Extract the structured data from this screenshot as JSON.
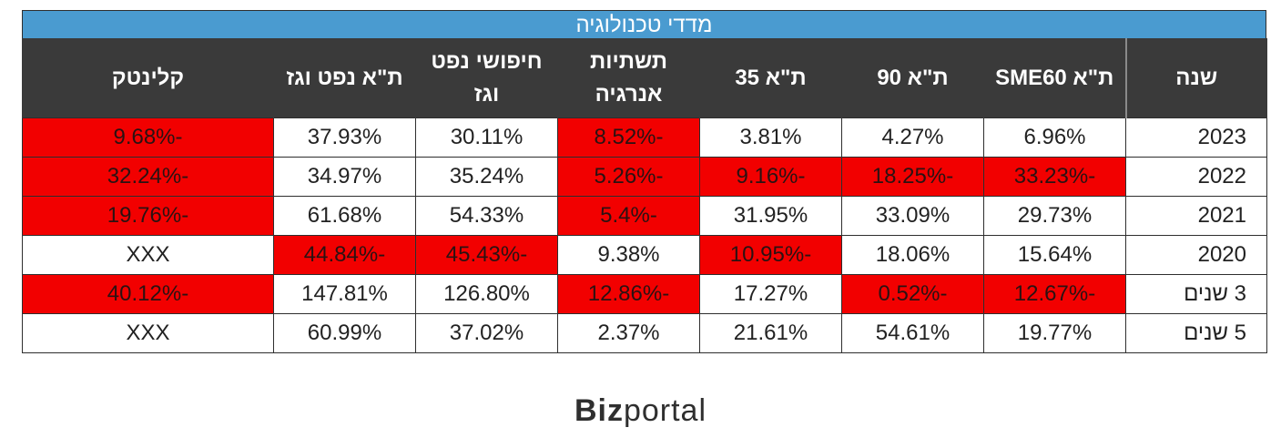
{
  "title": "מדדי טכנולוגיה",
  "headers": [
    "שנה",
    "ת\"א SME60",
    "ת\"א 90",
    "ת\"א 35",
    "תשתיות אנרגיה",
    "חיפושי נפט וגז",
    "ת\"א נפט וגז",
    "קלינטק"
  ],
  "rows": [
    {
      "year": "2023",
      "cells": [
        {
          "v": "6.96%",
          "neg": false
        },
        {
          "v": "4.27%",
          "neg": false
        },
        {
          "v": "3.81%",
          "neg": false
        },
        {
          "v": "-8.52%",
          "neg": true
        },
        {
          "v": "30.11%",
          "neg": false
        },
        {
          "v": "37.93%",
          "neg": false
        },
        {
          "v": "-9.68%",
          "neg": true
        }
      ]
    },
    {
      "year": "2022",
      "cells": [
        {
          "v": "-33.23%",
          "neg": true
        },
        {
          "v": "-18.25%",
          "neg": true
        },
        {
          "v": "-9.16%",
          "neg": true
        },
        {
          "v": "-5.26%",
          "neg": true
        },
        {
          "v": "35.24%",
          "neg": false
        },
        {
          "v": "34.97%",
          "neg": false
        },
        {
          "v": "-32.24%",
          "neg": true
        }
      ]
    },
    {
      "year": "2021",
      "cells": [
        {
          "v": "29.73%",
          "neg": false
        },
        {
          "v": "33.09%",
          "neg": false
        },
        {
          "v": "31.95%",
          "neg": false
        },
        {
          "v": "-5.4%",
          "neg": true
        },
        {
          "v": "54.33%",
          "neg": false
        },
        {
          "v": "61.68%",
          "neg": false
        },
        {
          "v": "-19.76%",
          "neg": true
        }
      ]
    },
    {
      "year": "2020",
      "cells": [
        {
          "v": "15.64%",
          "neg": false
        },
        {
          "v": "18.06%",
          "neg": false
        },
        {
          "v": "-10.95%",
          "neg": true
        },
        {
          "v": "9.38%",
          "neg": false
        },
        {
          "v": "-45.43%",
          "neg": true
        },
        {
          "v": "-44.84%",
          "neg": true
        },
        {
          "v": "XXX",
          "neg": false
        }
      ]
    },
    {
      "year": "3 שנים",
      "cells": [
        {
          "v": "-12.67%",
          "neg": true
        },
        {
          "v": "-0.52%",
          "neg": true
        },
        {
          "v": "17.27%",
          "neg": false
        },
        {
          "v": "-12.86%",
          "neg": true
        },
        {
          "v": "126.80%",
          "neg": false
        },
        {
          "v": "147.81%",
          "neg": false
        },
        {
          "v": "-40.12%",
          "neg": true
        }
      ]
    },
    {
      "year": "5 שנים",
      "cells": [
        {
          "v": "19.77%",
          "neg": false
        },
        {
          "v": "54.61%",
          "neg": false
        },
        {
          "v": "21.61%",
          "neg": false
        },
        {
          "v": "2.37%",
          "neg": false
        },
        {
          "v": "37.02%",
          "neg": false
        },
        {
          "v": "60.99%",
          "neg": false
        },
        {
          "v": "XXX",
          "neg": false
        }
      ]
    }
  ],
  "logo": {
    "part1": "Biz",
    "part2": "portal"
  },
  "colors": {
    "title_bg": "#4a9bd0",
    "header_bg": "#3a3a3a",
    "negative_bg": "#f20000"
  }
}
